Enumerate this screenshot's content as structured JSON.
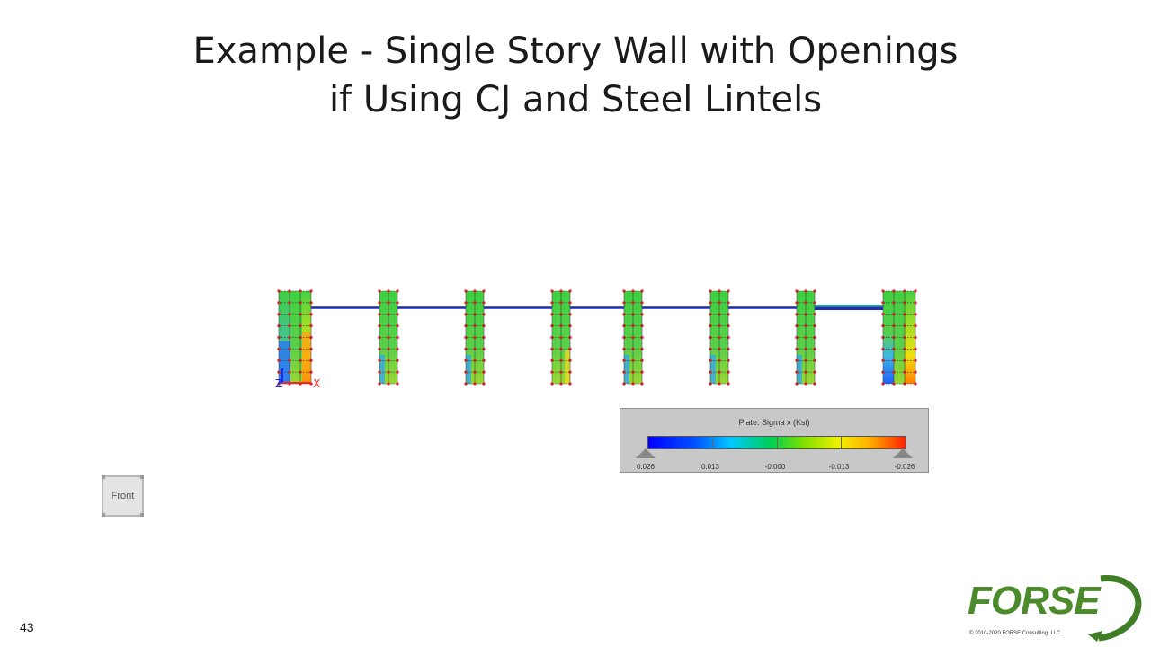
{
  "slide": {
    "title_line1": "Example - Single Story Wall with Openings",
    "title_line2": "if Using CJ and Steel Lintels",
    "page_number": "43"
  },
  "model": {
    "axis_x_label": "X",
    "axis_z_label": "Z"
  },
  "legend": {
    "title": "Plate: Sigma x (Ksi)",
    "ticks": [
      "0.026",
      "0.013",
      "-0.000",
      "-0.013",
      "-0.026"
    ],
    "colors": [
      "#0000ff",
      "#00c8ff",
      "#00d050",
      "#f0f000",
      "#ff2000"
    ]
  },
  "view_button": {
    "label": "Front"
  },
  "brand": {
    "logo_text": "FORSE",
    "copyright": "© 2010-2020 FORSE Consulting, LLC",
    "color": "#4c8b2b"
  }
}
